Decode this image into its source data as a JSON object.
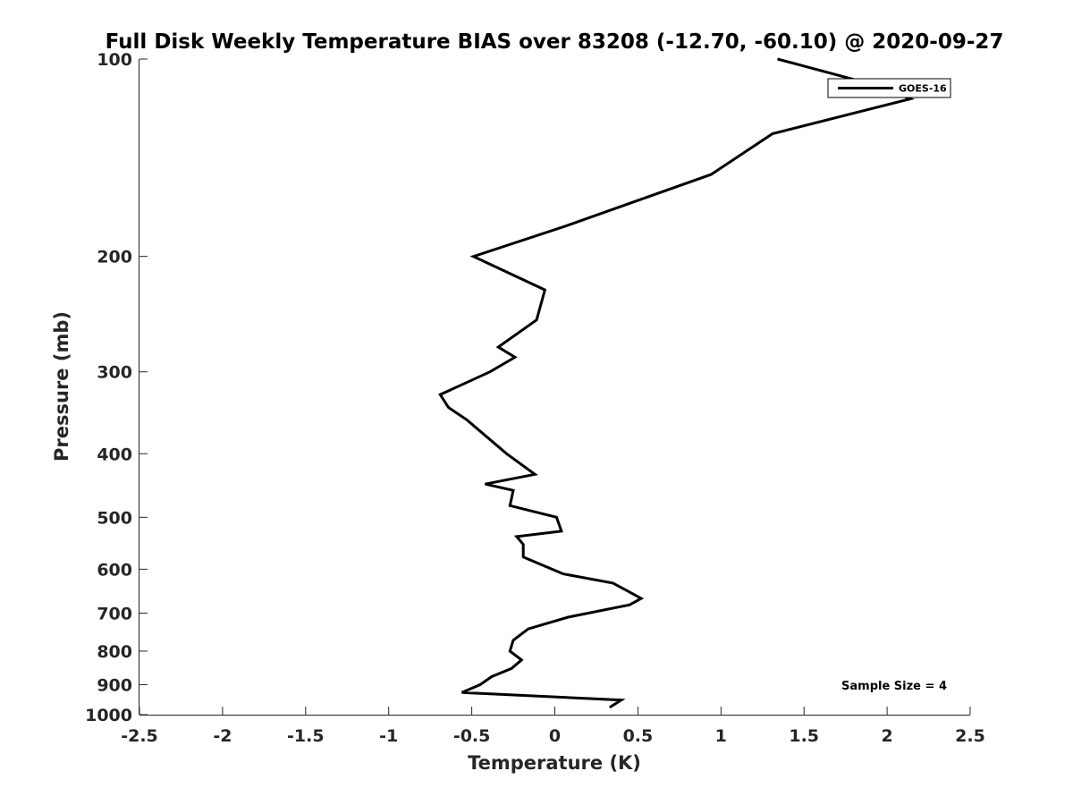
{
  "chart_data": {
    "type": "line",
    "title": "Full Disk Weekly Temperature BIAS over 83208 (-12.70, -60.10) @ 2020-09-27",
    "xlabel": "Temperature (K)",
    "ylabel": "Pressure (mb)",
    "xlim": [
      -2.5,
      2.5
    ],
    "ylim": [
      100,
      1000
    ],
    "y_scale": "log",
    "y_reversed": true,
    "grid": false,
    "legend_position": "top-right",
    "x_ticks": [
      -2.5,
      -2,
      -1.5,
      -1,
      -0.5,
      0,
      0.5,
      1,
      1.5,
      2,
      2.5
    ],
    "x_tick_labels": [
      "-2.5",
      "-2",
      "-1.5",
      "-1",
      "-0.5",
      "0",
      "0.5",
      "1",
      "1.5",
      "2",
      "2.5"
    ],
    "y_ticks": [
      100,
      200,
      300,
      400,
      500,
      600,
      700,
      800,
      900,
      1000
    ],
    "y_tick_labels": [
      "100",
      "200",
      "300",
      "400",
      "500",
      "600",
      "700",
      "800",
      "900",
      "1000"
    ],
    "series": [
      {
        "name": "GOES-16",
        "color": "#000000",
        "points": [
          {
            "x": 1.34,
            "y": 100
          },
          {
            "x": 1.95,
            "y": 110
          },
          {
            "x": 2.14,
            "y": 115
          },
          {
            "x": 1.31,
            "y": 130
          },
          {
            "x": 0.94,
            "y": 150
          },
          {
            "x": 0.06,
            "y": 180
          },
          {
            "x": -0.49,
            "y": 200
          },
          {
            "x": -0.06,
            "y": 225
          },
          {
            "x": -0.11,
            "y": 250
          },
          {
            "x": -0.34,
            "y": 275
          },
          {
            "x": -0.24,
            "y": 285
          },
          {
            "x": -0.39,
            "y": 300
          },
          {
            "x": -0.69,
            "y": 325
          },
          {
            "x": -0.64,
            "y": 340
          },
          {
            "x": -0.53,
            "y": 355
          },
          {
            "x": -0.29,
            "y": 400
          },
          {
            "x": -0.12,
            "y": 430
          },
          {
            "x": -0.42,
            "y": 445
          },
          {
            "x": -0.25,
            "y": 455
          },
          {
            "x": -0.27,
            "y": 480
          },
          {
            "x": 0.01,
            "y": 500
          },
          {
            "x": 0.04,
            "y": 525
          },
          {
            "x": -0.23,
            "y": 535
          },
          {
            "x": -0.19,
            "y": 550
          },
          {
            "x": -0.19,
            "y": 575
          },
          {
            "x": 0.05,
            "y": 610
          },
          {
            "x": 0.35,
            "y": 630
          },
          {
            "x": 0.45,
            "y": 650
          },
          {
            "x": 0.52,
            "y": 665
          },
          {
            "x": 0.45,
            "y": 680
          },
          {
            "x": 0.08,
            "y": 710
          },
          {
            "x": -0.16,
            "y": 740
          },
          {
            "x": -0.25,
            "y": 770
          },
          {
            "x": -0.27,
            "y": 800
          },
          {
            "x": -0.2,
            "y": 825
          },
          {
            "x": -0.26,
            "y": 850
          },
          {
            "x": -0.38,
            "y": 875
          },
          {
            "x": -0.45,
            "y": 900
          },
          {
            "x": -0.56,
            "y": 925
          },
          {
            "x": 0.4,
            "y": 950
          },
          {
            "x": 0.33,
            "y": 975
          }
        ]
      }
    ],
    "annotations": [
      {
        "text": "Sample Size = 4",
        "position": "bottom-right"
      }
    ]
  }
}
